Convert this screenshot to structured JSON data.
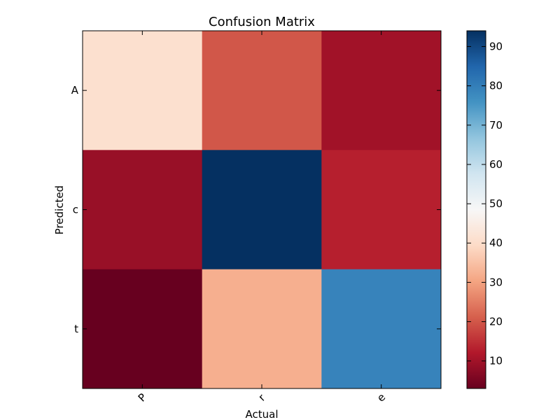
{
  "chart_data": {
    "type": "heatmap",
    "title": "Confusion Matrix",
    "xlabel": "Actual",
    "ylabel": "Predicted",
    "x_categories": [
      "P",
      "r",
      "e"
    ],
    "y_categories": [
      "A",
      "c",
      "t"
    ],
    "values": [
      [
        41,
        20,
        10
      ],
      [
        9,
        94,
        13
      ],
      [
        3,
        32,
        79
      ]
    ],
    "colorbar": {
      "min": 3,
      "max": 94,
      "ticks": [
        "10",
        "20",
        "30",
        "40",
        "50",
        "60",
        "70",
        "80",
        "90"
      ],
      "colormap": "RdBu"
    },
    "grid": false,
    "legend": "colorbar-right"
  }
}
